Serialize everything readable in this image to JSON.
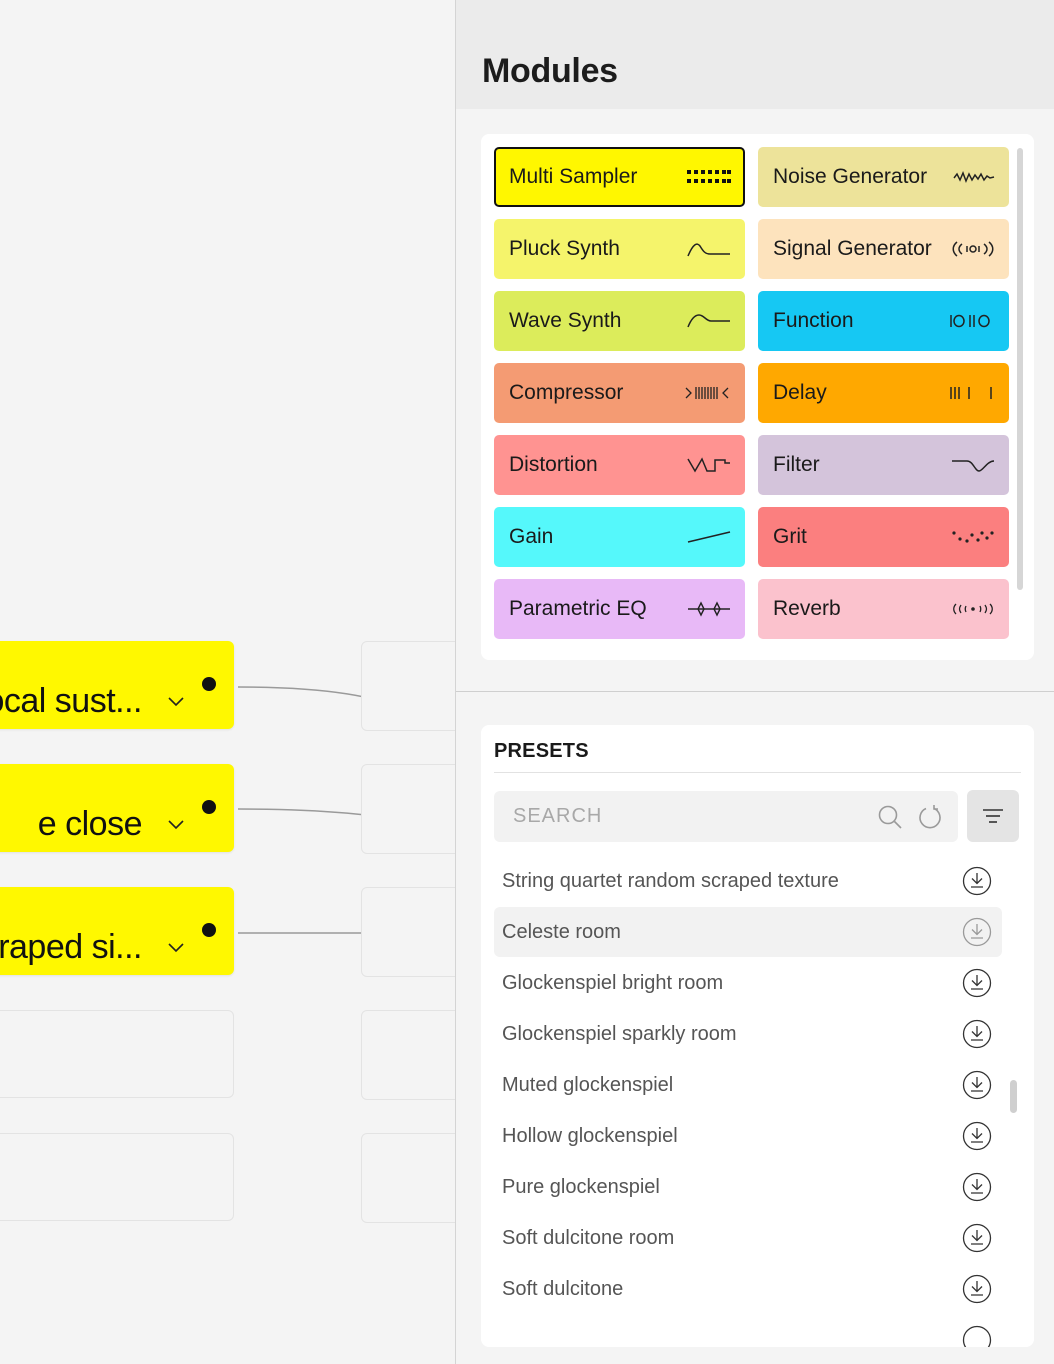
{
  "canvas": {
    "nodes": [
      {
        "label": "ocal sust..."
      },
      {
        "label": "e close"
      },
      {
        "label": "raped si..."
      }
    ]
  },
  "panel": {
    "title": "Modules",
    "modules": [
      {
        "label": "Multi Sampler",
        "icon": "grid-dots-icon",
        "color": "#fff700",
        "selected": true
      },
      {
        "label": "Noise Generator",
        "icon": "noise-wave-icon",
        "color": "#ede39a"
      },
      {
        "label": "Pluck Synth",
        "icon": "pluck-curve-icon",
        "color": "#f5f46b"
      },
      {
        "label": "Signal Generator",
        "icon": "radio-signal-icon",
        "color": "#fde3bd"
      },
      {
        "label": "Wave Synth",
        "icon": "wave-curve-icon",
        "color": "#dcec5b"
      },
      {
        "label": "Function",
        "icon": "binary-function-icon",
        "color": "#16c8f3"
      },
      {
        "label": "Compressor",
        "icon": "compressor-icon",
        "color": "#f49b73"
      },
      {
        "label": "Delay",
        "icon": "delay-bars-icon",
        "color": "#ffa800"
      },
      {
        "label": "Distortion",
        "icon": "distortion-wave-icon",
        "color": "#ff9391"
      },
      {
        "label": "Filter",
        "icon": "filter-curve-icon",
        "color": "#d4c4db"
      },
      {
        "label": "Gain",
        "icon": "gain-line-icon",
        "color": "#55f8fb"
      },
      {
        "label": "Grit",
        "icon": "grit-dots-icon",
        "color": "#fb7f7f"
      },
      {
        "label": "Parametric EQ",
        "icon": "eq-nodes-icon",
        "color": "#e8b9f7"
      },
      {
        "label": "Reverb",
        "icon": "reverb-ripple-icon",
        "color": "#fbc2cd"
      }
    ],
    "presets": {
      "heading": "PRESETS",
      "search_placeholder": "SEARCH",
      "items": [
        {
          "label": "String quartet random scraped texture"
        },
        {
          "label": "Celeste room",
          "active": true
        },
        {
          "label": "Glockenspiel bright room"
        },
        {
          "label": "Glockenspiel sparkly room"
        },
        {
          "label": "Muted glockenspiel"
        },
        {
          "label": "Hollow glockenspiel"
        },
        {
          "label": "Pure glockenspiel"
        },
        {
          "label": "Soft dulcitone room"
        },
        {
          "label": "Soft dulcitone"
        }
      ]
    }
  }
}
